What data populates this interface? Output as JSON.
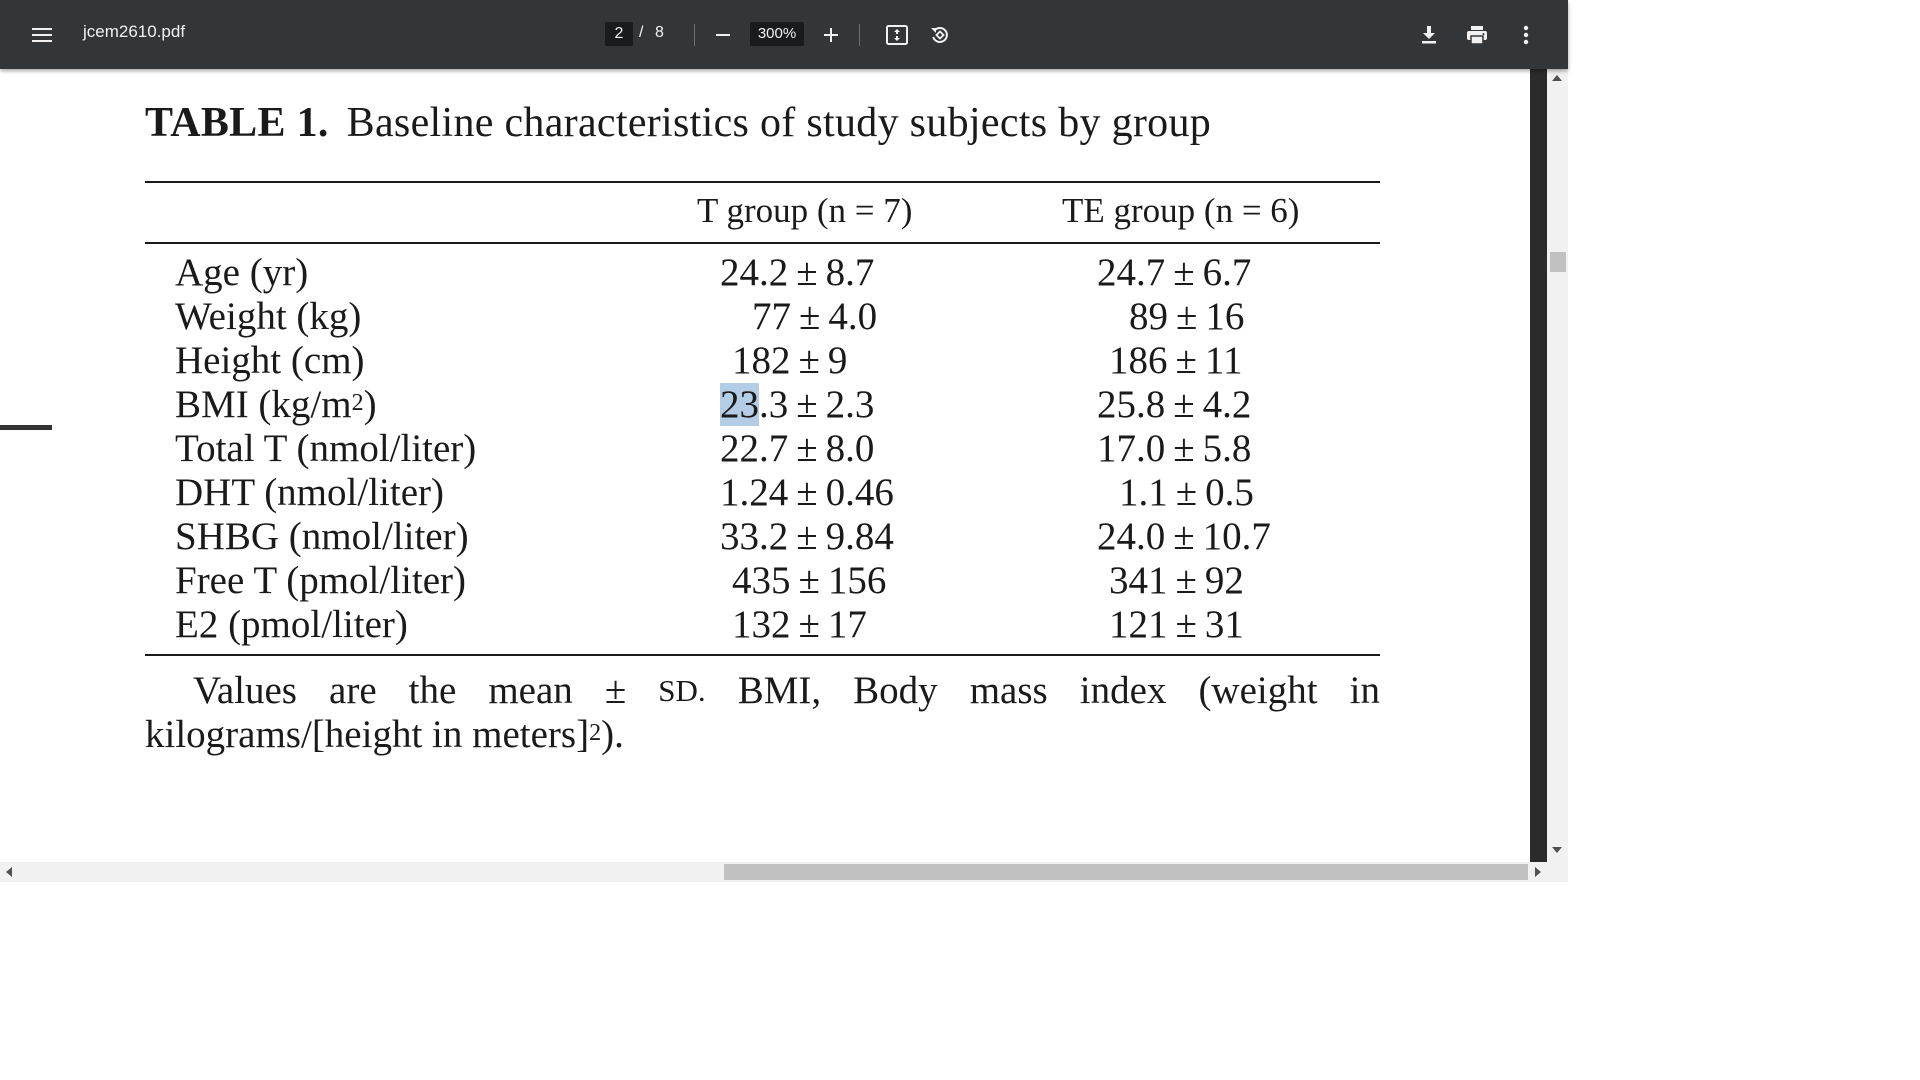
{
  "toolbar": {
    "file_name": "jcem2610.pdf",
    "current_page": "2",
    "page_separator": "/",
    "total_pages": "8",
    "zoom": "300%",
    "icons": {
      "menu": "hamburger-menu-icon",
      "zoom_out": "minus-icon",
      "zoom_in": "plus-icon",
      "fit": "fit-to-page-icon",
      "rotate": "rotate-counterclockwise-icon",
      "download": "download-icon",
      "print": "print-icon",
      "more": "more-vertical-icon"
    },
    "colors": {
      "background": "#323639",
      "input_background": "#191b1c",
      "text": "#f1f1f1"
    }
  },
  "document": {
    "caption_label": "TABLE 1.",
    "caption_text": "Baseline characteristics of study subjects by group",
    "columns": [
      "T group (n = 7)",
      "TE group (n = 6)"
    ],
    "rows": [
      {
        "label": "Age (yr)",
        "t_mean": "24.2",
        "t_sd": "8.7",
        "te_mean": "24.7",
        "te_sd": "6.7"
      },
      {
        "label": "Weight (kg)",
        "t_mean": "77",
        "t_sd": "4.0",
        "te_mean": "89",
        "te_sd": "16"
      },
      {
        "label": "Height (cm)",
        "t_mean": "182",
        "t_sd": "9",
        "te_mean": "186",
        "te_sd": "11"
      },
      {
        "label_prefix": "BMI (kg/m",
        "label_sup": "2",
        "label_suffix": ")",
        "t_mean_selected": "23",
        "t_mean_rest": ".3",
        "t_sd": "2.3",
        "te_mean": "25.8",
        "te_sd": "4.2"
      },
      {
        "label": "Total T (nmol/liter)",
        "t_mean": "22.7",
        "t_sd": "8.0",
        "te_mean": "17.0",
        "te_sd": "5.8"
      },
      {
        "label": "DHT (nmol/liter)",
        "t_mean": "1.24",
        "t_sd": "0.46",
        "te_mean": "1.1",
        "te_sd": "0.5"
      },
      {
        "label": "SHBG (nmol/liter)",
        "t_mean": "33.2",
        "t_sd": "9.84",
        "te_mean": "24.0",
        "te_sd": "10.7"
      },
      {
        "label": "Free T (pmol/liter)",
        "t_mean": "435",
        "t_sd": "156",
        "te_mean": "341",
        "te_sd": "92"
      },
      {
        "label": "E2 (pmol/liter)",
        "t_mean": "132",
        "t_sd": "17",
        "te_mean": "121",
        "te_sd": "31"
      }
    ],
    "pm_symbol": "±",
    "footnote": {
      "line1_words": [
        "Values",
        "are",
        "the",
        "mean",
        "±",
        "SD.",
        "BMI,",
        "Body",
        "mass",
        "index",
        "(weight",
        "in"
      ],
      "line2_prefix": "kilograms/[height in meters]",
      "line2_sup": "2",
      "line2_suffix": ")."
    },
    "selection_color": "#b3cde6"
  }
}
